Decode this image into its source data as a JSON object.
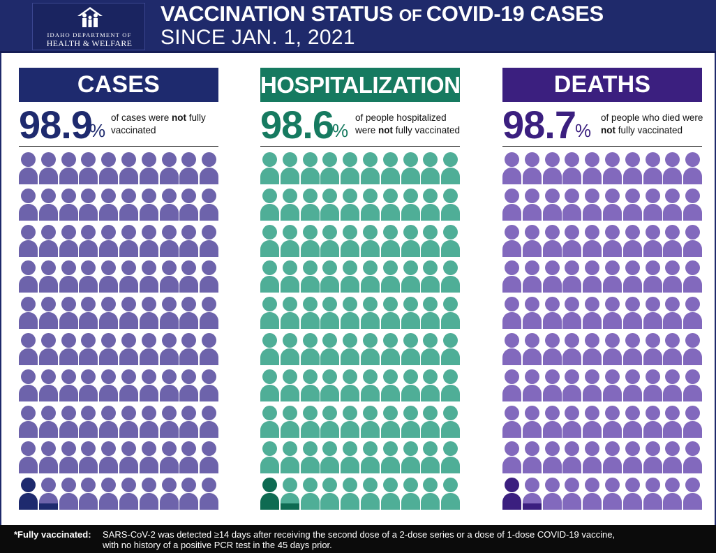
{
  "header": {
    "logo_line1": "IDAHO DEPARTMENT OF",
    "logo_line2": "HEALTH & WELFARE",
    "title_part1": "VACCINATION STATUS ",
    "title_part2": "OF ",
    "title_part3": "COVID-19 CASES",
    "subtitle": "SINCE JAN. 1, 2021"
  },
  "panels": [
    {
      "id": "cases",
      "title": "CASES",
      "percent": "98.9",
      "percent_sign": "%",
      "desc_part1": "of cases were ",
      "desc_bold": "not",
      "desc_part2": " fully vaccinated",
      "header_color": "#1e2a6e",
      "text_color": "#1e2a6e",
      "icon_color": "#6d63ab",
      "highlight_color": "#1e2a6e",
      "not_fully_vaccinated_share": 0.989,
      "icons_total": 100
    },
    {
      "id": "hospitalizations",
      "title": "HOSPITALIZATIONS",
      "percent": "98.6",
      "percent_sign": "%",
      "desc_part1": "of people hospitalized were ",
      "desc_bold": "not",
      "desc_part2": " fully vaccinated",
      "header_color": "#167a60",
      "text_color": "#167a60",
      "icon_color": "#4fae97",
      "highlight_color": "#0e6b52",
      "not_fully_vaccinated_share": 0.986,
      "icons_total": 100
    },
    {
      "id": "deaths",
      "title": "DEATHS",
      "percent": "98.7",
      "percent_sign": "%",
      "desc_part1": "of people who died were ",
      "desc_bold": "not",
      "desc_part2": " fully vaccinated",
      "header_color": "#3b1f7f",
      "text_color": "#3b1f7f",
      "icon_color": "#8269bd",
      "highlight_color": "#3b1f7f",
      "not_fully_vaccinated_share": 0.987,
      "icons_total": 100
    }
  ],
  "footnote": {
    "label": "*Fully vaccinated:",
    "line1": "SARS-CoV-2 was detected ≥14 days after receiving the second dose of a 2-dose series or a dose of 1-dose COVID-19 vaccine,",
    "line2": "with no history of a positive PCR test in the 45 days prior."
  }
}
